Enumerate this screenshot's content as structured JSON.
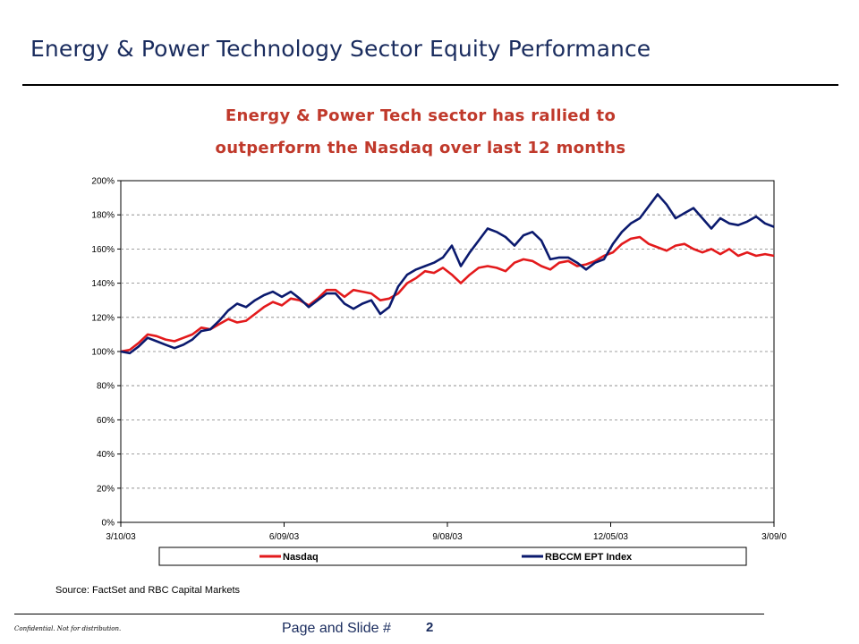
{
  "slide": {
    "title": "Energy & Power Technology Sector Equity Performance",
    "subtitle_line1": "Energy & Power Tech sector has rallied to",
    "subtitle_line2": "outperform the Nasdaq over last 12 months",
    "source": "Source: FactSet and RBC Capital Markets",
    "confidential": "Confidential.  Not for distribution.",
    "page_label": "Page and Slide #",
    "page_number": "2"
  },
  "colors": {
    "title": "#1a2c5e",
    "subtitle": "#c0392b",
    "nasdaq": "#e31a1c",
    "rbccm": "#0b1a6e"
  },
  "chart_data": {
    "type": "line",
    "x_tick_labels": [
      "3/10/03",
      "6/09/03",
      "9/08/03",
      "12/05/03",
      "3/09/0"
    ],
    "ylim": [
      0,
      200
    ],
    "y_ticks": [
      "0%",
      "20%",
      "40%",
      "60%",
      "80%",
      "100%",
      "120%",
      "140%",
      "160%",
      "180%",
      "200%"
    ],
    "grid": "horizontal dashed",
    "legend_placement": "bottom",
    "x": [
      0,
      5,
      10,
      15,
      20,
      25,
      30,
      35,
      40,
      45,
      50,
      55,
      60,
      65,
      70,
      75,
      80,
      85,
      90,
      95,
      100,
      105,
      110,
      115,
      120,
      125,
      130,
      135,
      140,
      145,
      150,
      155,
      160,
      165,
      170,
      175,
      180,
      185,
      190,
      195,
      200,
      205,
      210,
      215,
      220,
      225,
      230,
      235,
      240,
      245,
      250,
      255,
      260,
      265,
      270,
      275,
      280,
      285,
      290,
      295,
      300,
      305,
      310,
      315,
      320,
      325,
      330,
      335,
      340,
      345,
      350,
      355,
      360,
      365
    ],
    "series": [
      {
        "name": "Nasdaq",
        "values": [
          100,
          101,
          105,
          110,
          109,
          107,
          106,
          108,
          110,
          114,
          113,
          116,
          119,
          117,
          118,
          122,
          126,
          129,
          127,
          131,
          130,
          127,
          131,
          136,
          136,
          132,
          136,
          135,
          134,
          130,
          131,
          134,
          140,
          143,
          147,
          146,
          149,
          145,
          140,
          145,
          149,
          150,
          149,
          147,
          152,
          154,
          153,
          150,
          148,
          152,
          153,
          150,
          151,
          153,
          156,
          158,
          163,
          166,
          167,
          163,
          161,
          159,
          162,
          163,
          160,
          158,
          160,
          157,
          160,
          156,
          158,
          156,
          157,
          156
        ]
      },
      {
        "name": "RBCCM EPT Index",
        "values": [
          100,
          99,
          103,
          108,
          106,
          104,
          102,
          104,
          107,
          112,
          113,
          118,
          124,
          128,
          126,
          130,
          133,
          135,
          132,
          135,
          131,
          126,
          130,
          134,
          134,
          128,
          125,
          128,
          130,
          122,
          126,
          138,
          145,
          148,
          150,
          152,
          155,
          162,
          150,
          158,
          165,
          172,
          170,
          167,
          162,
          168,
          170,
          165,
          154,
          155,
          155,
          152,
          148,
          152,
          154,
          163,
          170,
          175,
          178,
          185,
          192,
          186,
          178,
          181,
          184,
          178,
          172,
          178,
          175,
          174,
          176,
          179,
          175,
          173
        ]
      }
    ]
  },
  "legend": {
    "items": [
      "Nasdaq",
      "RBCCM EPT Index"
    ]
  }
}
